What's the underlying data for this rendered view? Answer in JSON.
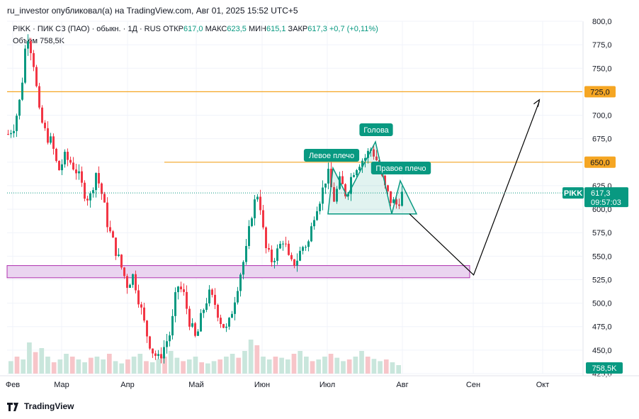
{
  "header": {
    "publisher": "ru_investor опубликовал(а) на TradingView.com, Авг 01, 2025 15:52 UTC+5"
  },
  "legend": {
    "symbol": "PIKK · ПИК СЗ (ПАО) · обыкн. · 1Д · RUS",
    "open_label": "ОТКР",
    "open": "617,0",
    "high_label": "МАКС",
    "high": "623,5",
    "low_label": "МИН",
    "low": "615,1",
    "close_label": "ЗАКР",
    "close": "617,3",
    "change": "+0,7 (+0,11%)",
    "volume_label": "Объём",
    "volume": "758,5K"
  },
  "footer": {
    "brand": "TradingView"
  },
  "colors": {
    "up": "#089981",
    "down": "#f23645",
    "hline": "#f5a623",
    "zone_fill": "#ead4f0",
    "zone_border": "#b030b0",
    "pattern": "#089981",
    "forecast": "#000000"
  },
  "chart_data": {
    "type": "candlestick",
    "price_axis": {
      "ticks": [
        "800,0",
        "775,0",
        "750,0",
        "725,0",
        "700,0",
        "675,0",
        "650,0",
        "625,0",
        "600,0",
        "575,0",
        "550,0",
        "525,0",
        "500,0",
        "475,0",
        "450,0",
        "425,0"
      ],
      "range": [
        425,
        800
      ]
    },
    "time_axis": {
      "labels": [
        "Фев",
        "Мар",
        "Апр",
        "Май",
        "Июн",
        "Июл",
        "Авг",
        "Сен",
        "Окт"
      ]
    },
    "horizontal_levels": [
      {
        "price": 725,
        "label": "725,0"
      },
      {
        "price": 650,
        "label": "650,0"
      }
    ],
    "support_zone": {
      "from": 527,
      "to": 540
    },
    "pattern_labels": [
      "Левое плечо",
      "Голова",
      "Правое плечо"
    ],
    "neckline": 595,
    "forecast_path": [
      [
        1.42,
        595
      ],
      [
        1.49,
        530
      ],
      [
        1.7,
        715
      ]
    ],
    "last_price": {
      "symbol": "PIKK",
      "price": "617,3",
      "countdown": "09:57:03"
    },
    "last_volume": "758,5K",
    "price_path": [
      [
        0,
        680
      ],
      [
        0.02,
        690
      ],
      [
        0.04,
        720
      ],
      [
        0.06,
        790
      ],
      [
        0.08,
        760
      ],
      [
        0.1,
        700
      ],
      [
        0.12,
        680
      ],
      [
        0.14,
        670
      ],
      [
        0.16,
        640
      ],
      [
        0.18,
        655
      ],
      [
        0.2,
        650
      ],
      [
        0.22,
        640
      ],
      [
        0.24,
        620
      ],
      [
        0.26,
        610
      ],
      [
        0.28,
        640
      ],
      [
        0.3,
        615
      ],
      [
        0.32,
        580
      ],
      [
        0.34,
        560
      ],
      [
        0.36,
        540
      ],
      [
        0.38,
        520
      ],
      [
        0.4,
        530
      ],
      [
        0.42,
        500
      ],
      [
        0.44,
        470
      ],
      [
        0.46,
        450
      ],
      [
        0.48,
        440
      ],
      [
        0.5,
        455
      ],
      [
        0.52,
        470
      ],
      [
        0.54,
        520
      ],
      [
        0.56,
        510
      ],
      [
        0.58,
        480
      ],
      [
        0.6,
        460
      ],
      [
        0.62,
        490
      ],
      [
        0.64,
        510
      ],
      [
        0.66,
        500
      ],
      [
        0.68,
        480
      ],
      [
        0.7,
        470
      ],
      [
        0.72,
        500
      ],
      [
        0.74,
        530
      ],
      [
        0.76,
        555
      ],
      [
        0.78,
        600
      ],
      [
        0.8,
        620
      ],
      [
        0.82,
        560
      ],
      [
        0.84,
        545
      ],
      [
        0.86,
        555
      ],
      [
        0.88,
        570
      ],
      [
        0.9,
        540
      ],
      [
        0.92,
        545
      ],
      [
        0.94,
        560
      ],
      [
        0.96,
        565
      ],
      [
        0.98,
        600
      ],
      [
        1.0,
        615
      ],
      [
        1.02,
        640
      ],
      [
        1.04,
        610
      ],
      [
        1.06,
        630
      ],
      [
        1.08,
        615
      ],
      [
        1.1,
        640
      ],
      [
        1.12,
        650
      ],
      [
        1.14,
        655
      ],
      [
        1.16,
        665
      ],
      [
        1.18,
        650
      ],
      [
        1.2,
        625
      ],
      [
        1.22,
        610
      ],
      [
        1.24,
        605
      ],
      [
        1.26,
        617
      ]
    ],
    "volumes": [
      0.22,
      0.3,
      0.25,
      0.55,
      0.38,
      0.45,
      0.3,
      0.2,
      0.25,
      0.35,
      0.3,
      0.25,
      0.2,
      0.28,
      0.3,
      0.25,
      0.35,
      0.22,
      0.18,
      0.25,
      0.3,
      0.35,
      0.22,
      0.2,
      0.26,
      0.3,
      0.4,
      0.28,
      0.22,
      0.25,
      0.3,
      0.2,
      0.18,
      0.22,
      0.25,
      0.3,
      0.35,
      0.28,
      0.4,
      0.6,
      0.5,
      0.3,
      0.25,
      0.3,
      0.28,
      0.25,
      0.35,
      0.4,
      0.3,
      0.22,
      0.25,
      0.3,
      0.35,
      0.28,
      0.22,
      0.25,
      0.3,
      0.4,
      0.3,
      0.26,
      0.22,
      0.25,
      0.2,
      0.15
    ]
  }
}
